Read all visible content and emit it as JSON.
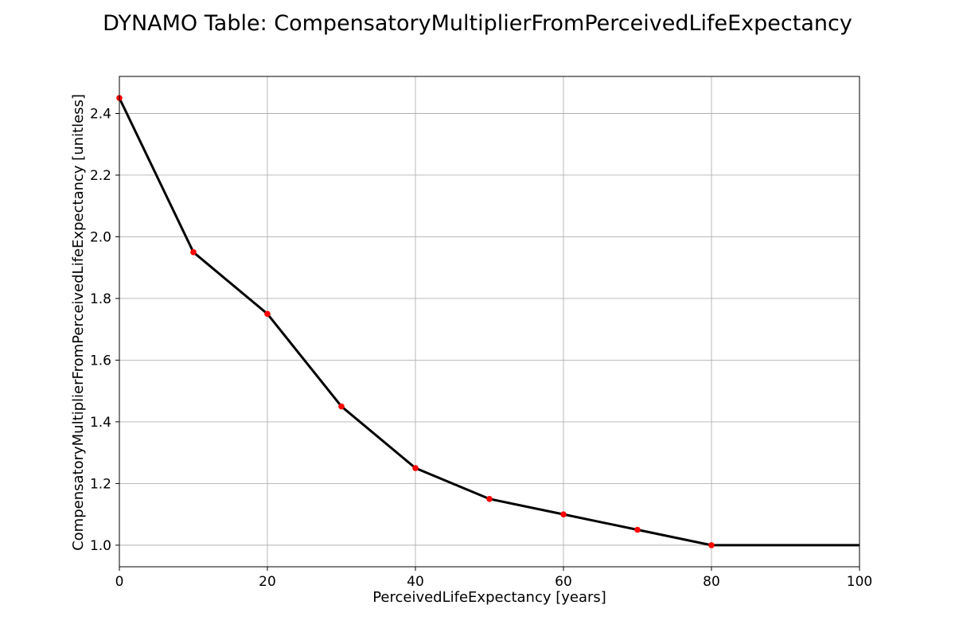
{
  "chart_data": {
    "type": "line",
    "title": "DYNAMO Table: CompensatoryMultiplierFromPerceivedLifeExpectancy",
    "xlabel": "PerceivedLifeExpectancy [years]",
    "ylabel": "CompensatoryMultiplierFromPerceivedLifeExpectancy [unitless]",
    "xlim": [
      0,
      100
    ],
    "ylim": [
      0.93,
      2.52
    ],
    "x_ticks": [
      0,
      20,
      40,
      60,
      80,
      100
    ],
    "y_ticks": [
      1.0,
      1.2,
      1.4,
      1.6,
      1.8,
      2.0,
      2.2,
      2.4
    ],
    "x_tick_labels": [
      "0",
      "20",
      "40",
      "60",
      "80",
      "100"
    ],
    "y_tick_labels": [
      "1.0",
      "1.2",
      "1.4",
      "1.6",
      "1.8",
      "2.0",
      "2.2",
      "2.4"
    ],
    "grid": true,
    "series": [
      {
        "x": [
          0,
          10,
          20,
          30,
          40,
          50,
          60,
          70,
          80,
          100
        ],
        "y": [
          2.45,
          1.95,
          1.75,
          1.45,
          1.25,
          1.15,
          1.1,
          1.05,
          1.0,
          1.0
        ]
      }
    ],
    "markers": {
      "x": [
        0,
        10,
        20,
        30,
        40,
        50,
        60,
        70,
        80
      ],
      "y": [
        2.45,
        1.95,
        1.75,
        1.45,
        1.25,
        1.15,
        1.1,
        1.05,
        1.0
      ]
    },
    "colors": {
      "line": "#000000",
      "markers": "#ff0000",
      "grid": "#b0b0b0",
      "axes": "#000000"
    }
  }
}
